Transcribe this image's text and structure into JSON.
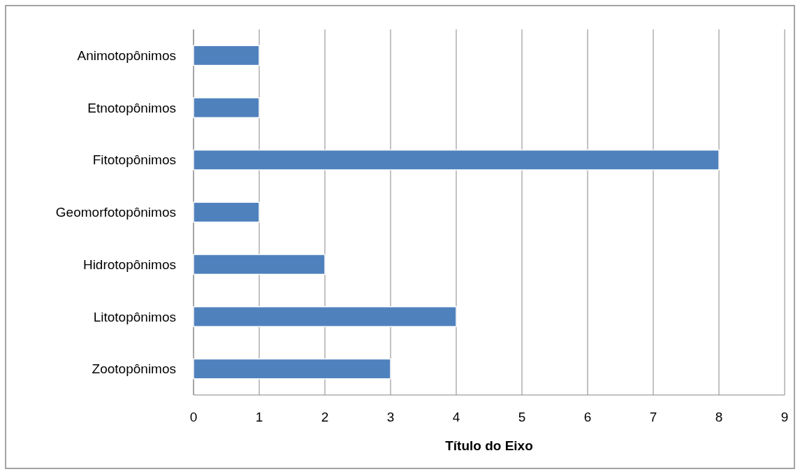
{
  "chart_data": {
    "type": "bar",
    "orientation": "horizontal",
    "xlabel": "Título do Eixo",
    "categories": [
      "Animotopônimos",
      "Etnotopônimos",
      "Fitotopônimos",
      "Geomorfotopônimos",
      "Hidrotopônimos",
      "Litotopônimos",
      "Zootopônimos"
    ],
    "values": [
      1,
      1,
      8,
      1,
      2,
      4,
      3
    ],
    "color": "#4f81bd",
    "xlim": [
      0,
      9
    ],
    "xticks": [
      0,
      1,
      2,
      3,
      4,
      5,
      6,
      7,
      8,
      9
    ],
    "grid": "x"
  }
}
